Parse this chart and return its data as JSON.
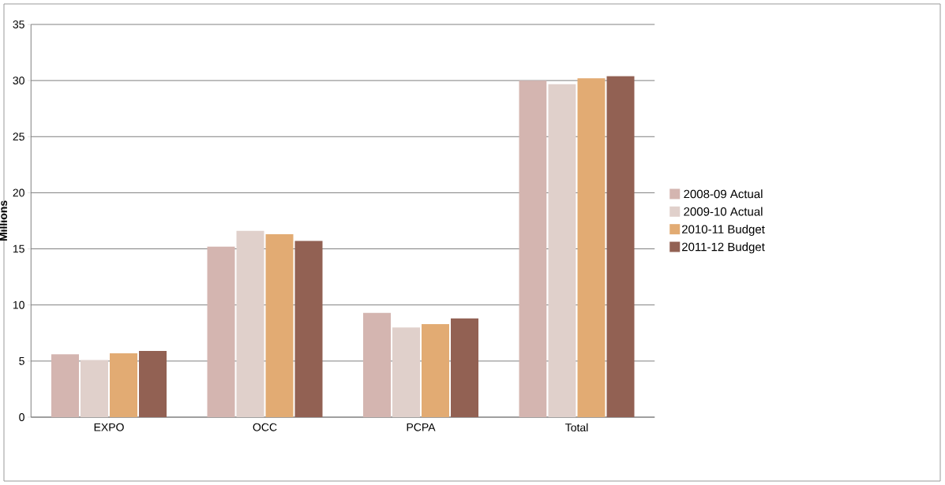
{
  "chart_data": {
    "type": "bar",
    "ylabel": "Millions",
    "categories": [
      "EXPO",
      "OCC",
      "PCPA",
      "Total"
    ],
    "series": [
      {
        "name": "2008-09 Actual",
        "color": "#d4b5b0",
        "values": [
          5.6,
          15.2,
          9.3,
          30.0
        ]
      },
      {
        "name": "2009-10 Actual",
        "color": "#e0d0cb",
        "values": [
          5.1,
          16.6,
          8.0,
          29.7
        ]
      },
      {
        "name": "2010-11 Budget",
        "color": "#e2ab73",
        "values": [
          5.7,
          16.3,
          8.3,
          30.2
        ]
      },
      {
        "name": "2011-12 Budget",
        "color": "#926153",
        "values": [
          5.9,
          15.7,
          8.8,
          30.4
        ]
      }
    ],
    "ylim": [
      0,
      35
    ],
    "yticks": [
      0,
      5,
      10,
      15,
      20,
      25,
      30,
      35
    ],
    "grid": "y",
    "legend": "right"
  }
}
